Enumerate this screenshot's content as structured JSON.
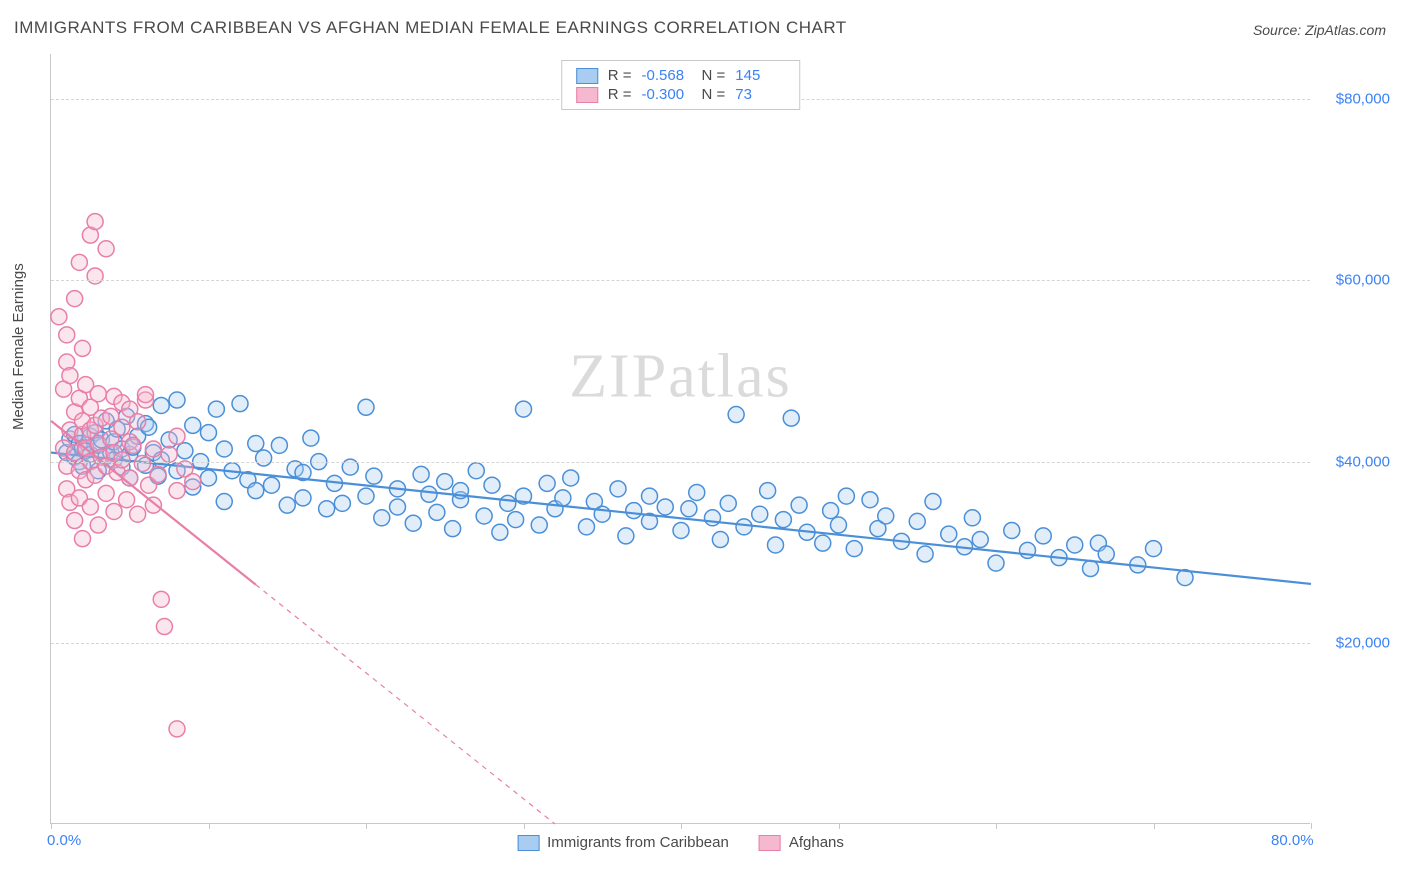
{
  "title": "IMMIGRANTS FROM CARIBBEAN VS AFGHAN MEDIAN FEMALE EARNINGS CORRELATION CHART",
  "source_label": "Source:",
  "source_name": "ZipAtlas.com",
  "watermark": "ZIPatlas",
  "ylabel": "Median Female Earnings",
  "chart": {
    "type": "scatter",
    "xlim": [
      0,
      80
    ],
    "ylim": [
      0,
      85000
    ],
    "x_ticks": [
      0,
      10,
      20,
      30,
      40,
      50,
      60,
      70,
      80
    ],
    "x_tick_labels": {
      "0": "0.0%",
      "80": "80.0%"
    },
    "y_ticks": [
      20000,
      40000,
      60000,
      80000
    ],
    "y_tick_labels": [
      "$20,000",
      "$40,000",
      "$60,000",
      "$80,000"
    ],
    "grid_color": "#d5d5d5",
    "axis_color": "#c8c8c8",
    "background_color": "#ffffff",
    "tick_label_color": "#3b82f6",
    "marker_radius": 8,
    "marker_stroke_width": 1.5,
    "marker_fill_opacity": 0.35,
    "line_width": 2.2
  },
  "series": [
    {
      "name": "Immigrants from Caribbean",
      "color_stroke": "#4a8fd8",
      "color_fill": "#a9cdf0",
      "R": "-0.568",
      "N": "145",
      "regression": {
        "x1": 0,
        "y1": 41000,
        "x2": 80,
        "y2": 26500,
        "solid_until_x": 80
      },
      "points": [
        [
          1.0,
          41000
        ],
        [
          1.2,
          42500
        ],
        [
          1.5,
          40500
        ],
        [
          1.5,
          43000
        ],
        [
          1.8,
          40000
        ],
        [
          1.8,
          42000
        ],
        [
          2.0,
          39500
        ],
        [
          2.0,
          41500
        ],
        [
          2.2,
          41200
        ],
        [
          2.5,
          42800
        ],
        [
          2.5,
          40800
        ],
        [
          2.8,
          43200
        ],
        [
          3.0,
          39000
        ],
        [
          3.0,
          41800
        ],
        [
          3.2,
          42400
        ],
        [
          3.5,
          40600
        ],
        [
          3.5,
          44500
        ],
        [
          3.8,
          41000
        ],
        [
          4.0,
          40200
        ],
        [
          4.0,
          42200
        ],
        [
          4.2,
          43600
        ],
        [
          4.5,
          39400
        ],
        [
          4.5,
          41400
        ],
        [
          4.8,
          45000
        ],
        [
          5.0,
          40800
        ],
        [
          5.0,
          38200
        ],
        [
          5.2,
          41600
        ],
        [
          5.5,
          42800
        ],
        [
          6.0,
          44200
        ],
        [
          6.0,
          39600
        ],
        [
          6.2,
          43800
        ],
        [
          6.5,
          41000
        ],
        [
          6.8,
          38400
        ],
        [
          7.0,
          46200
        ],
        [
          7.0,
          40200
        ],
        [
          7.5,
          42400
        ],
        [
          8.0,
          39000
        ],
        [
          8.0,
          46800
        ],
        [
          8.5,
          41200
        ],
        [
          9.0,
          44000
        ],
        [
          9.0,
          37200
        ],
        [
          9.5,
          40000
        ],
        [
          10.0,
          38200
        ],
        [
          10.0,
          43200
        ],
        [
          10.5,
          45800
        ],
        [
          11.0,
          41400
        ],
        [
          11.0,
          35600
        ],
        [
          11.5,
          39000
        ],
        [
          12.0,
          46400
        ],
        [
          12.5,
          38000
        ],
        [
          13.0,
          42000
        ],
        [
          13.0,
          36800
        ],
        [
          13.5,
          40400
        ],
        [
          14.0,
          37400
        ],
        [
          14.5,
          41800
        ],
        [
          15.0,
          35200
        ],
        [
          15.5,
          39200
        ],
        [
          16.0,
          36000
        ],
        [
          16.0,
          38800
        ],
        [
          16.5,
          42600
        ],
        [
          17.0,
          40000
        ],
        [
          17.5,
          34800
        ],
        [
          18.0,
          37600
        ],
        [
          18.5,
          35400
        ],
        [
          19.0,
          39400
        ],
        [
          20.0,
          46000
        ],
        [
          20.0,
          36200
        ],
        [
          20.5,
          38400
        ],
        [
          21.0,
          33800
        ],
        [
          22.0,
          37000
        ],
        [
          22.0,
          35000
        ],
        [
          23.0,
          33200
        ],
        [
          23.5,
          38600
        ],
        [
          24.0,
          36400
        ],
        [
          24.5,
          34400
        ],
        [
          25.0,
          37800
        ],
        [
          25.5,
          32600
        ],
        [
          26.0,
          35800
        ],
        [
          26.0,
          36800
        ],
        [
          27.0,
          39000
        ],
        [
          27.5,
          34000
        ],
        [
          28.0,
          37400
        ],
        [
          28.5,
          32200
        ],
        [
          29.0,
          35400
        ],
        [
          29.5,
          33600
        ],
        [
          30.0,
          45800
        ],
        [
          30.0,
          36200
        ],
        [
          31.0,
          33000
        ],
        [
          31.5,
          37600
        ],
        [
          32.0,
          34800
        ],
        [
          32.5,
          36000
        ],
        [
          33.0,
          38200
        ],
        [
          34.0,
          32800
        ],
        [
          34.5,
          35600
        ],
        [
          35.0,
          34200
        ],
        [
          36.0,
          37000
        ],
        [
          36.5,
          31800
        ],
        [
          37.0,
          34600
        ],
        [
          38.0,
          33400
        ],
        [
          38.0,
          36200
        ],
        [
          39.0,
          35000
        ],
        [
          40.0,
          32400
        ],
        [
          40.5,
          34800
        ],
        [
          41.0,
          36600
        ],
        [
          42.0,
          33800
        ],
        [
          42.5,
          31400
        ],
        [
          43.0,
          35400
        ],
        [
          43.5,
          45200
        ],
        [
          44.0,
          32800
        ],
        [
          45.0,
          34200
        ],
        [
          45.5,
          36800
        ],
        [
          46.0,
          30800
        ],
        [
          46.5,
          33600
        ],
        [
          47.0,
          44800
        ],
        [
          47.5,
          35200
        ],
        [
          48.0,
          32200
        ],
        [
          49.0,
          31000
        ],
        [
          49.5,
          34600
        ],
        [
          50.0,
          33000
        ],
        [
          50.5,
          36200
        ],
        [
          51.0,
          30400
        ],
        [
          52.0,
          35800
        ],
        [
          52.5,
          32600
        ],
        [
          53.0,
          34000
        ],
        [
          54.0,
          31200
        ],
        [
          55.0,
          33400
        ],
        [
          55.5,
          29800
        ],
        [
          56.0,
          35600
        ],
        [
          57.0,
          32000
        ],
        [
          58.0,
          30600
        ],
        [
          58.5,
          33800
        ],
        [
          59.0,
          31400
        ],
        [
          60.0,
          28800
        ],
        [
          61.0,
          32400
        ],
        [
          62.0,
          30200
        ],
        [
          63.0,
          31800
        ],
        [
          64.0,
          29400
        ],
        [
          65.0,
          30800
        ],
        [
          66.0,
          28200
        ],
        [
          66.5,
          31000
        ],
        [
          67.0,
          29800
        ],
        [
          69.0,
          28600
        ],
        [
          70.0,
          30400
        ],
        [
          72.0,
          27200
        ]
      ]
    },
    {
      "name": "Afghans",
      "color_stroke": "#e87fa8",
      "color_fill": "#f5b8cf",
      "R": "-0.300",
      "N": "73",
      "regression": {
        "x1": 0,
        "y1": 44500,
        "x2": 32,
        "y2": 0,
        "solid_until_x": 13
      },
      "points": [
        [
          0.5,
          56000
        ],
        [
          0.8,
          41500
        ],
        [
          0.8,
          48000
        ],
        [
          1.0,
          39500
        ],
        [
          1.0,
          51000
        ],
        [
          1.0,
          37000
        ],
        [
          1.0,
          54000
        ],
        [
          1.2,
          43500
        ],
        [
          1.2,
          35500
        ],
        [
          1.2,
          49500
        ],
        [
          1.5,
          58000
        ],
        [
          1.5,
          41000
        ],
        [
          1.5,
          45500
        ],
        [
          1.5,
          33500
        ],
        [
          1.8,
          62000
        ],
        [
          1.8,
          39000
        ],
        [
          1.8,
          47000
        ],
        [
          1.8,
          36000
        ],
        [
          2.0,
          43000
        ],
        [
          2.0,
          52500
        ],
        [
          2.0,
          31500
        ],
        [
          2.0,
          44500
        ],
        [
          2.2,
          38000
        ],
        [
          2.2,
          48500
        ],
        [
          2.2,
          41500
        ],
        [
          2.5,
          65000
        ],
        [
          2.5,
          46000
        ],
        [
          2.5,
          35000
        ],
        [
          2.5,
          40000
        ],
        [
          2.5,
          43500
        ],
        [
          2.8,
          66500
        ],
        [
          2.8,
          38500
        ],
        [
          2.8,
          60500
        ],
        [
          2.8,
          44000
        ],
        [
          3.0,
          42000
        ],
        [
          3.0,
          47500
        ],
        [
          3.0,
          33000
        ],
        [
          3.2,
          40500
        ],
        [
          3.2,
          44800
        ],
        [
          3.5,
          39500
        ],
        [
          3.5,
          36500
        ],
        [
          3.5,
          63500
        ],
        [
          3.8,
          42500
        ],
        [
          3.8,
          45000
        ],
        [
          4.0,
          34500
        ],
        [
          4.0,
          41000
        ],
        [
          4.0,
          47200
        ],
        [
          4.2,
          38800
        ],
        [
          4.5,
          43800
        ],
        [
          4.5,
          40200
        ],
        [
          4.5,
          46500
        ],
        [
          4.8,
          35800
        ],
        [
          5.0,
          42200
        ],
        [
          5.0,
          38200
        ],
        [
          5.0,
          45800
        ],
        [
          5.2,
          41800
        ],
        [
          5.5,
          34200
        ],
        [
          5.5,
          44400
        ],
        [
          5.8,
          39800
        ],
        [
          6.0,
          46800
        ],
        [
          6.0,
          47400
        ],
        [
          6.2,
          37400
        ],
        [
          6.5,
          41400
        ],
        [
          6.5,
          35200
        ],
        [
          6.8,
          38600
        ],
        [
          7.0,
          24800
        ],
        [
          7.2,
          21800
        ],
        [
          7.5,
          40800
        ],
        [
          8.0,
          36800
        ],
        [
          8.0,
          42800
        ],
        [
          8.5,
          39200
        ],
        [
          9.0,
          37800
        ],
        [
          8.0,
          10500
        ]
      ]
    }
  ]
}
